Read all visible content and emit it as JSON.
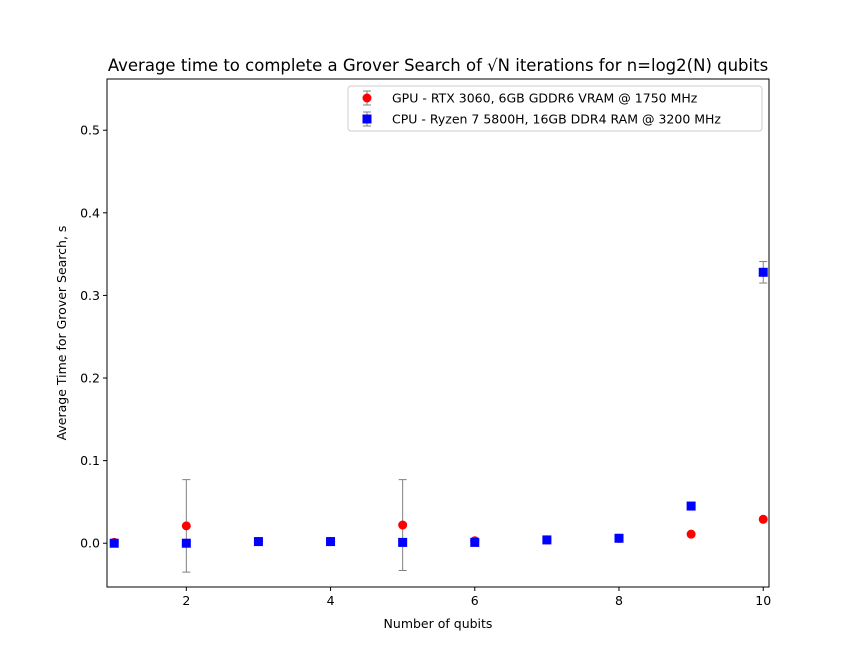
{
  "chart_data": {
    "type": "scatter",
    "title": "Average time to complete a Grover Search of √N iterations for n=log2(N) qubits",
    "xlabel": "Number of qubits",
    "ylabel": "Average Time for Grover Search, s",
    "xlim": [
      0.9,
      10.08
    ],
    "ylim": [
      -0.053,
      0.562
    ],
    "xticks": [
      2,
      4,
      6,
      8,
      10
    ],
    "yticks": [
      0.0,
      0.1,
      0.2,
      0.3,
      0.4,
      0.5
    ],
    "ytick_labels": [
      "0.0",
      "0.1",
      "0.2",
      "0.3",
      "0.4",
      "0.5"
    ],
    "grid": false,
    "legend_position": "top-right",
    "error_bar_color": "#808080",
    "series": [
      {
        "name": "GPU - RTX 3060, 6GB GDDR6 VRAM @ 1750 MHz",
        "marker": "circle",
        "color": "#ff0000",
        "x": [
          1,
          2,
          3,
          4,
          5,
          6,
          7,
          8,
          9,
          10
        ],
        "y": [
          0.001,
          0.021,
          0.002,
          0.002,
          0.022,
          0.003,
          0.004,
          0.006,
          0.011,
          0.029
        ],
        "yerr": [
          0.0,
          0.056,
          0.0,
          0.0,
          0.055,
          0.0,
          0.0,
          0.0,
          0.0,
          0.0
        ]
      },
      {
        "name": "CPU - Ryzen 7 5800H, 16GB DDR4 RAM @ 3200 MHz",
        "marker": "square",
        "color": "#0000ff",
        "x": [
          1,
          2,
          3,
          4,
          5,
          6,
          7,
          8,
          9,
          10
        ],
        "y": [
          0.0,
          0.0,
          0.002,
          0.002,
          0.001,
          0.001,
          0.004,
          0.006,
          0.045,
          0.328
        ],
        "yerr": [
          0.0,
          0.0,
          0.0,
          0.0,
          0.0,
          0.0,
          0.0,
          0.0,
          0.0,
          0.013
        ]
      }
    ]
  }
}
